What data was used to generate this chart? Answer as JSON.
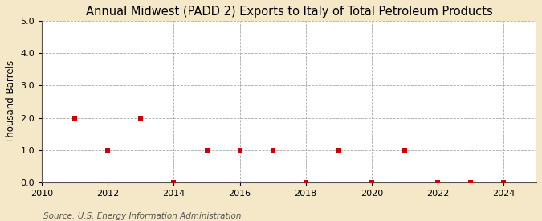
{
  "title": "Annual Midwest (PADD 2) Exports to Italy of Total Petroleum Products",
  "ylabel": "Thousand Barrels",
  "source": "Source: U.S. Energy Information Administration",
  "background_color": "#f5e8c8",
  "plot_background_color": "#ffffff",
  "data_x": [
    2011,
    2012,
    2013,
    2014,
    2015,
    2016,
    2017,
    2018,
    2019,
    2020,
    2021,
    2022,
    2023,
    2024
  ],
  "data_y": [
    2.0,
    1.0,
    2.0,
    0.0,
    1.0,
    1.0,
    1.0,
    0.0,
    1.0,
    0.0,
    1.0,
    0.0,
    0.0,
    0.0
  ],
  "marker_color": "#cc0000",
  "marker": "s",
  "marker_size": 4,
  "xlim": [
    2010,
    2025
  ],
  "ylim": [
    0.0,
    5.0
  ],
  "yticks": [
    0.0,
    1.0,
    2.0,
    3.0,
    4.0,
    5.0
  ],
  "xticks": [
    2010,
    2012,
    2014,
    2016,
    2018,
    2020,
    2022,
    2024
  ],
  "grid_color": "#aaaaaa",
  "grid_style": "--",
  "title_fontsize": 10.5,
  "label_fontsize": 8.5,
  "tick_fontsize": 8,
  "source_fontsize": 7.5
}
